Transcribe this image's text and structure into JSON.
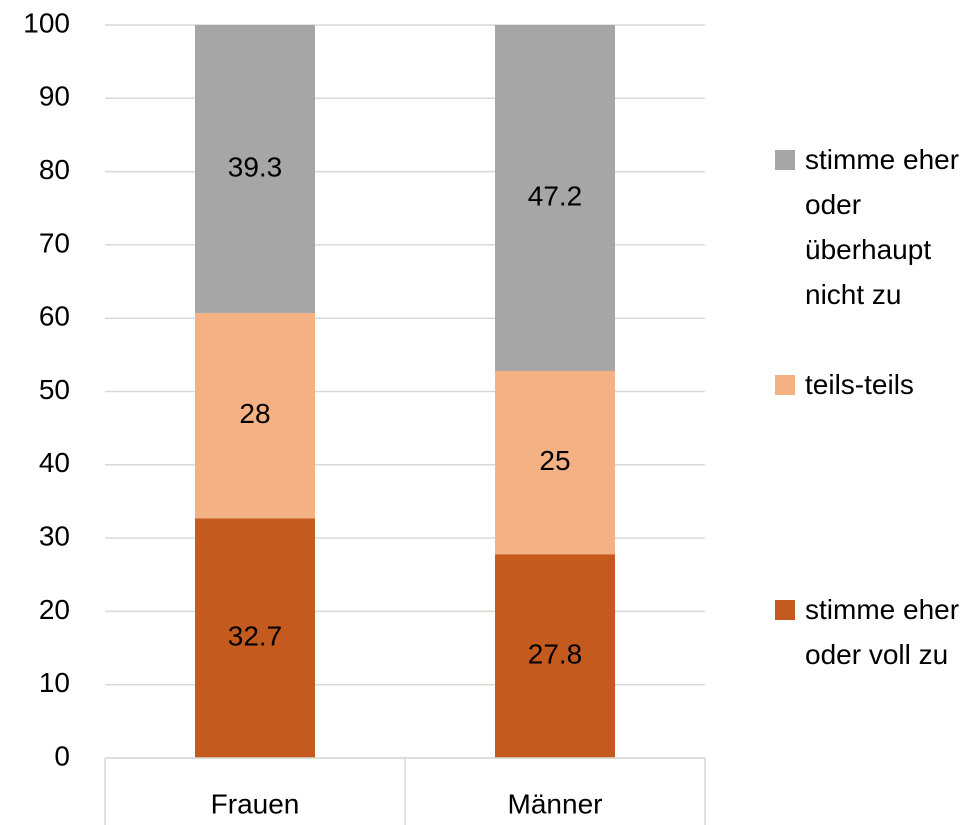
{
  "chart_data": {
    "type": "stacked_bar",
    "categories": [
      "Frauen",
      "Männer"
    ],
    "series": [
      {
        "name": "stimme eher oder voll zu",
        "color": "#c55a1f",
        "values": [
          32.7,
          27.8
        ]
      },
      {
        "name": "teils-teils",
        "color": "#f4b183",
        "values": [
          28,
          25
        ]
      },
      {
        "name": "stimme eher oder überhaupt nicht zu",
        "color": "#a6a6a6",
        "values": [
          39.3,
          47.2
        ]
      }
    ],
    "ylim": [
      0,
      100
    ],
    "yticks": [
      0,
      10,
      20,
      30,
      40,
      50,
      60,
      70,
      80,
      90,
      100
    ],
    "grid": true,
    "legend": "right"
  }
}
